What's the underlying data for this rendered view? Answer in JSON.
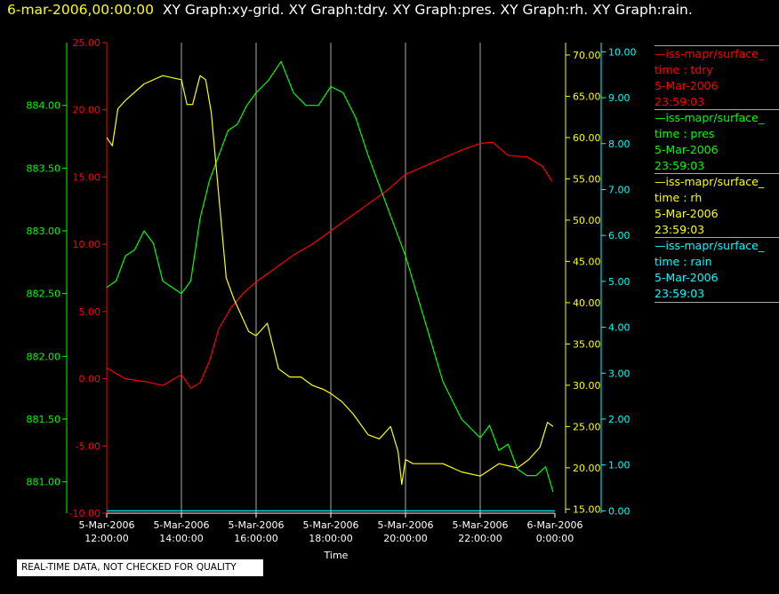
{
  "header": {
    "timestamp": "6-mar-2006,00:00:00",
    "graphs": "XY Graph:xy-grid.  XY Graph:tdry.  XY Graph:pres.  XY Graph:rh.  XY Graph:rain."
  },
  "legend": [
    {
      "name": "iss-mapr/surface_",
      "line2": "time : tdry",
      "date": "5-Mar-2006",
      "time": "23:59:03",
      "color": "#ff0000"
    },
    {
      "name": "iss-mapr/surface_",
      "line2": "time : pres",
      "date": "5-Mar-2006",
      "time": "23:59:03",
      "color": "#00ff00"
    },
    {
      "name": "iss-mapr/surface_",
      "line2": "time : rh",
      "date": "5-Mar-2006",
      "time": "23:59:03",
      "color": "#ffff00"
    },
    {
      "name": "iss-mapr/surface_",
      "line2": "time : rain",
      "date": "5-Mar-2006",
      "time": "23:59:03",
      "color": "#00ffff"
    }
  ],
  "footer": {
    "note": "REAL-TIME DATA, NOT CHECKED FOR QUALITY"
  },
  "chart_data": {
    "type": "line",
    "xlabel": "Time",
    "x_ticks": [
      {
        "t": 12,
        "date": "5-Mar-2006",
        "time": "12:00:00"
      },
      {
        "t": 14,
        "date": "5-Mar-2006",
        "time": "14:00:00"
      },
      {
        "t": 16,
        "date": "5-Mar-2006",
        "time": "16:00:00"
      },
      {
        "t": 18,
        "date": "5-Mar-2006",
        "time": "18:00:00"
      },
      {
        "t": 20,
        "date": "5-Mar-2006",
        "time": "20:00:00"
      },
      {
        "t": 22,
        "date": "5-Mar-2006",
        "time": "22:00:00"
      },
      {
        "t": 24,
        "date": "6-Mar-2006",
        "time": "0:00:00"
      }
    ],
    "xlim": [
      "5-Mar-2006 12:00:00",
      "6-Mar-2006 0:00:00"
    ],
    "grid": "vertical",
    "axes": {
      "pres": {
        "color": "#00ff00",
        "ylim": [
          880.75,
          884.5
        ],
        "ticks": [
          "881.00",
          "881.50",
          "882.00",
          "882.50",
          "883.00",
          "883.50",
          "884.00"
        ],
        "tick_values": [
          881.0,
          881.5,
          882.0,
          882.5,
          883.0,
          883.5,
          884.0
        ]
      },
      "tdry": {
        "color": "#ff0000",
        "ylim": [
          -10,
          25
        ],
        "ticks": [
          "-10.00",
          "-5.00",
          "0.00",
          "5.00",
          "10.00",
          "15.00",
          "20.00",
          "25.00"
        ],
        "tick_values": [
          -10,
          -5,
          0,
          5,
          10,
          15,
          20,
          25
        ]
      },
      "rh": {
        "color": "#ffff00",
        "ylim": [
          14.5,
          71.5
        ],
        "ticks": [
          "15.00",
          "20.00",
          "25.00",
          "30.00",
          "35.00",
          "40.00",
          "45.00",
          "50.00",
          "55.00",
          "60.00",
          "65.00",
          "70.00"
        ],
        "tick_values": [
          15,
          20,
          25,
          30,
          35,
          40,
          45,
          50,
          55,
          60,
          65,
          70
        ]
      },
      "rain": {
        "color": "#00ffff",
        "ylim": [
          -0.05,
          10.2
        ],
        "ticks": [
          "0.00",
          "1.00",
          "2.00",
          "3.00",
          "4.00",
          "5.00",
          "6.00",
          "7.00",
          "8.00",
          "9.00",
          "10.00"
        ],
        "tick_values": [
          0,
          1,
          2,
          3,
          4,
          5,
          6,
          7,
          8,
          9,
          10
        ]
      }
    },
    "series": [
      {
        "name": "tdry",
        "axis": "tdry",
        "color": "#ff0000",
        "x": [
          "12:00",
          "12:30",
          "13:00",
          "13:30",
          "14:00",
          "14:15",
          "14:30",
          "14:45",
          "15:00",
          "15:20",
          "15:40",
          "16:00",
          "16:30",
          "17:00",
          "17:30",
          "18:00",
          "18:30",
          "19:00",
          "19:30",
          "20:00",
          "20:30",
          "21:00",
          "21:30",
          "22:00",
          "22:20",
          "22:45",
          "23:15",
          "23:40",
          "23:55"
        ],
        "x_hours": [
          12,
          12.5,
          13,
          13.5,
          14,
          14.25,
          14.5,
          14.75,
          15,
          15.33,
          15.67,
          16,
          16.5,
          17,
          17.5,
          18,
          18.5,
          19,
          19.5,
          20,
          20.5,
          21,
          21.5,
          22,
          22.33,
          22.75,
          23.25,
          23.67,
          23.92
        ],
        "values": [
          0.8,
          0.0,
          -0.2,
          -0.5,
          0.3,
          -0.7,
          -0.3,
          1.3,
          3.7,
          5.3,
          6.4,
          7.2,
          8.2,
          9.2,
          10.0,
          11.0,
          12.0,
          13.0,
          14.0,
          15.2,
          15.8,
          16.4,
          17.0,
          17.5,
          17.6,
          16.6,
          16.5,
          15.8,
          14.7
        ]
      },
      {
        "name": "pres",
        "axis": "pres",
        "color": "#00ff00",
        "x_hours": [
          12,
          12.25,
          12.5,
          12.75,
          13,
          13.25,
          13.5,
          13.75,
          14,
          14.25,
          14.5,
          14.75,
          15,
          15.25,
          15.5,
          15.75,
          16,
          16.33,
          16.67,
          17,
          17.33,
          17.67,
          18,
          18.33,
          18.67,
          19,
          19.5,
          20,
          20.5,
          21,
          21.5,
          22,
          22.25,
          22.5,
          22.75,
          23,
          23.25,
          23.5,
          23.75,
          23.95
        ],
        "values": [
          882.55,
          882.6,
          882.8,
          882.85,
          883.0,
          882.9,
          882.6,
          882.55,
          882.5,
          882.6,
          883.1,
          883.4,
          883.6,
          883.8,
          883.85,
          884.0,
          884.1,
          884.2,
          884.35,
          884.1,
          884.0,
          884.0,
          884.15,
          884.1,
          883.9,
          883.6,
          883.2,
          882.8,
          882.3,
          881.8,
          881.5,
          881.35,
          881.45,
          881.25,
          881.3,
          881.1,
          881.05,
          881.05,
          881.12,
          880.92
        ]
      },
      {
        "name": "rh",
        "axis": "rh",
        "color": "#ffff00",
        "x_hours": [
          12,
          12.15,
          12.3,
          12.5,
          13,
          13.5,
          14,
          14.15,
          14.3,
          14.5,
          14.65,
          14.8,
          15,
          15.2,
          15.4,
          15.6,
          15.8,
          16,
          16.3,
          16.6,
          16.9,
          17.2,
          17.5,
          17.8,
          18,
          18.3,
          18.6,
          19,
          19.3,
          19.6,
          19.8,
          19.9,
          20,
          20.2,
          20.5,
          21,
          21.5,
          22,
          22.5,
          23,
          23.3,
          23.6,
          23.8,
          23.95
        ],
        "values": [
          60,
          59,
          63.5,
          64.5,
          66.5,
          67.5,
          67,
          64,
          64,
          67.5,
          67,
          63,
          53,
          43,
          40.5,
          38.5,
          36.5,
          36,
          37.5,
          32,
          31,
          31,
          30,
          29.5,
          29,
          28,
          26.5,
          24,
          23.5,
          25,
          22,
          18,
          21,
          20.5,
          20.5,
          20.5,
          19.5,
          19,
          20.5,
          20,
          21,
          22.5,
          25.5,
          25
        ]
      },
      {
        "name": "rain",
        "axis": "rain",
        "color": "#00ffff",
        "x_hours": [
          12,
          24
        ],
        "values": [
          0,
          0
        ]
      }
    ]
  }
}
